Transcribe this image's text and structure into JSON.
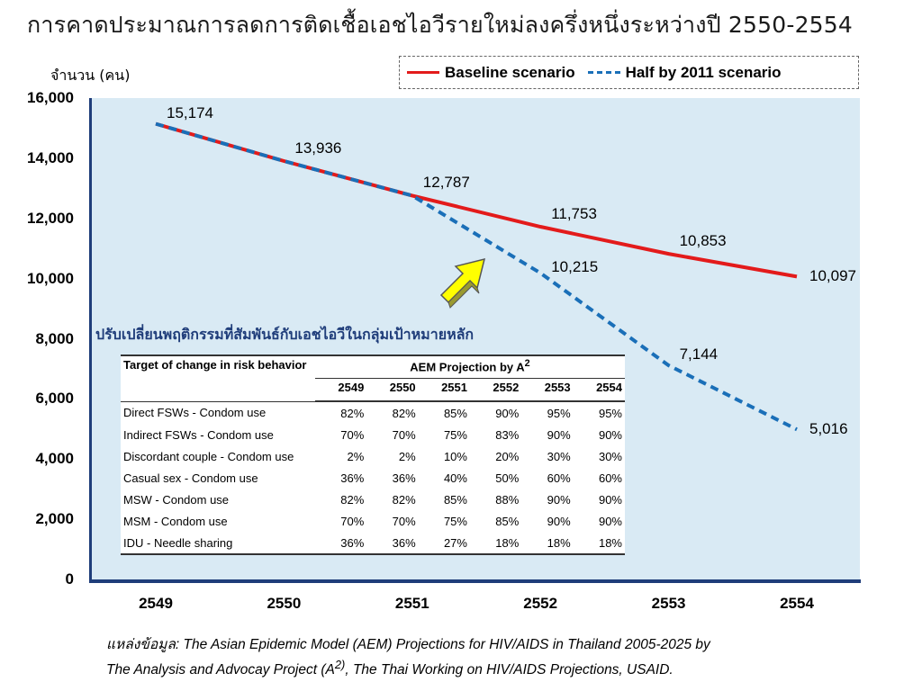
{
  "title": "การคาดประมาณการลดการติดเชื้อเอชไอวีรายใหม่ลงครึ่งหนึ่งระหว่างปี 2550-2554",
  "chart_data": {
    "type": "line",
    "ylabel": "จำนวน (คน)",
    "categories": [
      "2549",
      "2550",
      "2551",
      "2552",
      "2553",
      "2554"
    ],
    "ylim": [
      0,
      16000
    ],
    "yticks": [
      "0",
      "2,000",
      "4,000",
      "6,000",
      "8,000",
      "10,000",
      "12,000",
      "14,000",
      "16,000"
    ],
    "legend_position": "top-right",
    "series": [
      {
        "name": "Baseline scenario",
        "color": "#e31b1b",
        "style": "solid",
        "values": [
          15174,
          13936,
          12787,
          11753,
          10853,
          10097
        ],
        "labels": [
          "15,174",
          "13,936",
          "12,787",
          "11,753",
          "10,853",
          "10,097"
        ]
      },
      {
        "name": "Half by 2011 scenario",
        "color": "#1a6fb8",
        "style": "dashed",
        "values": [
          15174,
          13936,
          12787,
          10215,
          7144,
          5016
        ],
        "labels": [
          "",
          "",
          "",
          "10,215",
          "7,144",
          "5,016"
        ]
      }
    ]
  },
  "callout": "ปรับเปลี่ยนพฤติกรรมที่สัมพันธ์กับเอชไอวีในกลุ่มเป้าหมายหลัก",
  "table": {
    "header_left": "Target of change in risk behavior",
    "header_group": "AEM Projection by A",
    "header_group_sup": "2",
    "years": [
      "2549",
      "2550",
      "2551",
      "2552",
      "2553",
      "2554"
    ],
    "rows": [
      {
        "label": "Direct FSWs - Condom use",
        "values": [
          "82%",
          "82%",
          "85%",
          "90%",
          "95%",
          "95%"
        ]
      },
      {
        "label": "Indirect FSWs - Condom use",
        "values": [
          "70%",
          "70%",
          "75%",
          "83%",
          "90%",
          "90%"
        ]
      },
      {
        "label": "Discordant couple - Condom use",
        "values": [
          "2%",
          "2%",
          "10%",
          "20%",
          "30%",
          "30%"
        ]
      },
      {
        "label": "Casual sex - Condom use",
        "values": [
          "36%",
          "36%",
          "40%",
          "50%",
          "60%",
          "60%"
        ]
      },
      {
        "label": "MSW - Condom use",
        "values": [
          "82%",
          "82%",
          "85%",
          "88%",
          "90%",
          "90%"
        ]
      },
      {
        "label": "MSM - Condom use",
        "values": [
          "70%",
          "70%",
          "75%",
          "85%",
          "90%",
          "90%"
        ]
      },
      {
        "label": "IDU - Needle sharing",
        "values": [
          "36%",
          "36%",
          "27%",
          "18%",
          "18%",
          "18%"
        ]
      }
    ]
  },
  "source": {
    "prefix": "แหล่งข้อมูล:",
    "line1": " The Asian Epidemic Model (AEM) Projections for HIV/AIDS in Thailand 2005-2025 by",
    "line2a": "The Analysis and Advocay Project (A",
    "line2sup": "2)",
    "line2b": ",  The Thai Working  on HIV/AIDS Projections, USAID."
  },
  "colors": {
    "plot_background": "#d9eaf4",
    "axis": "#1f3d7a",
    "arrow": "#ffff00"
  }
}
